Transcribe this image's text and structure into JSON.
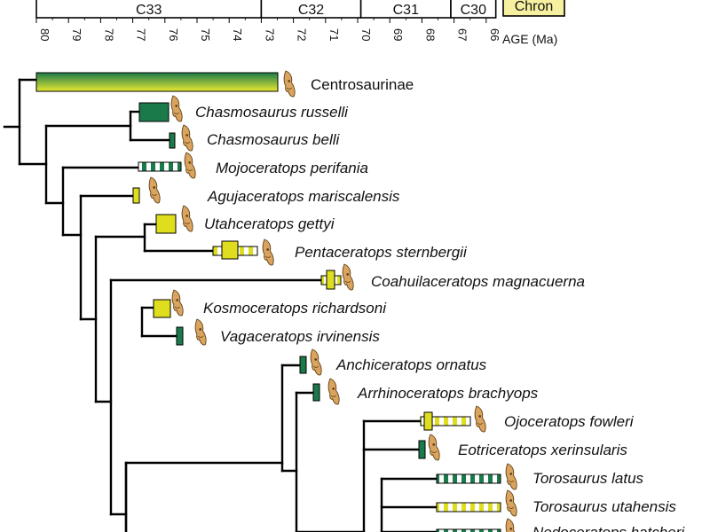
{
  "chrons": [
    {
      "label": "C33",
      "from": 80,
      "to": 73.0
    },
    {
      "label": "C32",
      "from": 73.0,
      "to": 69.9
    },
    {
      "label": "C31",
      "from": 69.9,
      "to": 67.1
    },
    {
      "label": "C30",
      "from": 67.1,
      "to": 65.7
    },
    {
      "label": "Chron",
      "from": 65.7,
      "to": 63.0,
      "highlight": true
    }
  ],
  "chron_highlight_color": "#f7f0a0",
  "axis": {
    "unit_label": "AGE (Ma)",
    "ticks": [
      "80",
      "79",
      "78",
      "77",
      "76",
      "75",
      "74",
      "73",
      "72",
      "71",
      "70",
      "69",
      "68",
      "67",
      "66"
    ]
  },
  "colors": {
    "green": "#1a7a4a",
    "yellow": "#dede1e",
    "skull": "#d9a460",
    "line": "#000000"
  },
  "taxa": [
    {
      "name": "Centrosaurinae",
      "group": true,
      "icon": "centrosaur-skull-icon"
    },
    {
      "name": "Chasmosaurus russelli",
      "icon": "skull-icon"
    },
    {
      "name": "Chasmosaurus belli",
      "icon": "skull-icon"
    },
    {
      "name": "Mojoceratops perifania",
      "icon": "skull-icon"
    },
    {
      "name": "Agujaceratops mariscalensis",
      "icon": "skull-icon"
    },
    {
      "name": "Utahceratops gettyi",
      "icon": "skull-icon"
    },
    {
      "name": "Pentaceratops sternbergii",
      "icon": "skull-icon"
    },
    {
      "name": "Coahuilaceratops magnacuerna",
      "icon": "skull-icon"
    },
    {
      "name": "Kosmoceratops richardsoni",
      "icon": "skull-icon"
    },
    {
      "name": "Vagaceratops irvinensis",
      "icon": "skull-icon"
    },
    {
      "name": "Anchiceratops ornatus",
      "icon": "skull-icon"
    },
    {
      "name": "Arrhinoceratops brachyops",
      "icon": "skull-icon"
    },
    {
      "name": "Ojoceratops fowleri",
      "icon": "skull-icon"
    },
    {
      "name": "Eotriceratops xerinsularis",
      "icon": "skull-icon"
    },
    {
      "name": "Torosaurus  latus",
      "icon": "skull-icon"
    },
    {
      "name": "Torosaurus  utahensis",
      "icon": "skull-icon"
    },
    {
      "name": "Nedoceratops hatcheri",
      "icon": "skull-icon"
    }
  ]
}
